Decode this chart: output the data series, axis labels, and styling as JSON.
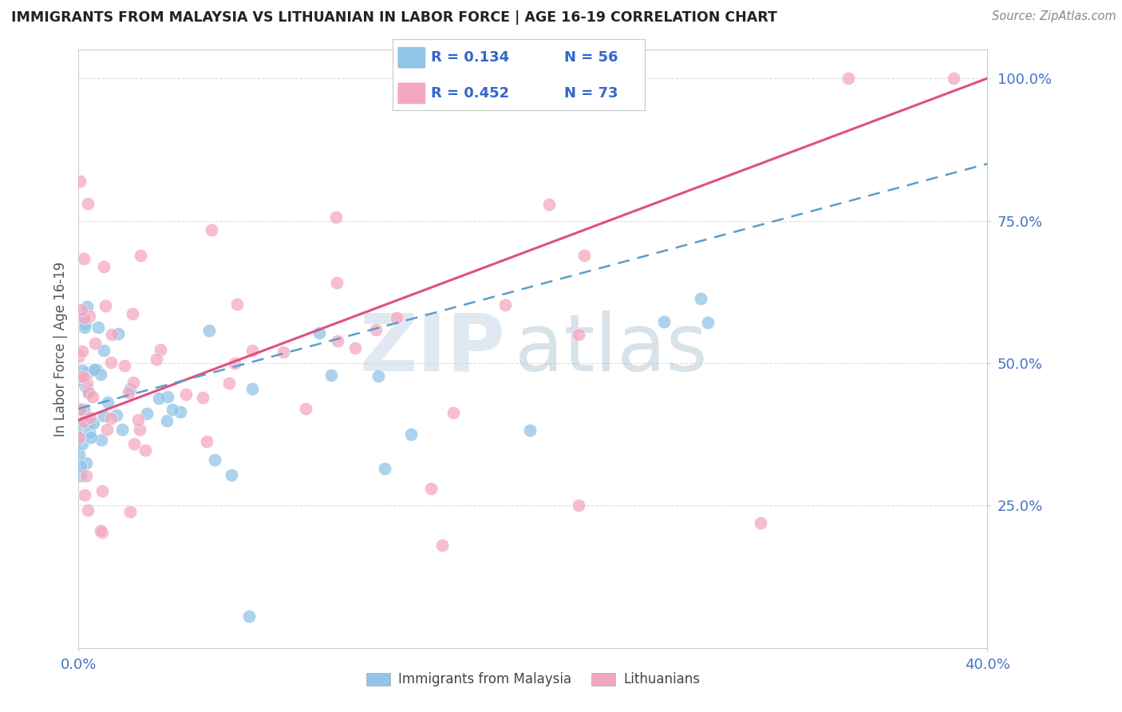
{
  "title": "IMMIGRANTS FROM MALAYSIA VS LITHUANIAN IN LABOR FORCE | AGE 16-19 CORRELATION CHART",
  "source_text": "Source: ZipAtlas.com",
  "ylabel": "In Labor Force | Age 16-19",
  "xlim": [
    0.0,
    0.4
  ],
  "ylim": [
    0.0,
    1.05
  ],
  "ytick_values": [
    0.25,
    0.5,
    0.75,
    1.0
  ],
  "ytick_labels": [
    "25.0%",
    "50.0%",
    "75.0%",
    "100.0%"
  ],
  "xtick_values": [
    0.0,
    0.4
  ],
  "xtick_labels": [
    "0.0%",
    "40.0%"
  ],
  "color_malaysia": "#90C4E8",
  "color_lithuanian": "#F4A8C0",
  "trendline_color_malaysia": "#5B9EC9",
  "trendline_color_lithuanian": "#E05080",
  "background_color": "#FFFFFF",
  "watermark_zip": "ZIP",
  "watermark_atlas": "atlas",
  "grid_color": "#DDDDDD",
  "r_malaysia": "R = 0.134",
  "n_malaysia": "N = 56",
  "r_lithuanian": "R = 0.452",
  "n_lithuanian": "N = 73",
  "legend_label_malaysia": "Immigrants from Malaysia",
  "legend_label_lithuanian": "Lithuanians",
  "tick_color": "#4472C4",
  "ylabel_color": "#555555",
  "title_color": "#222222",
  "source_color": "#888888"
}
